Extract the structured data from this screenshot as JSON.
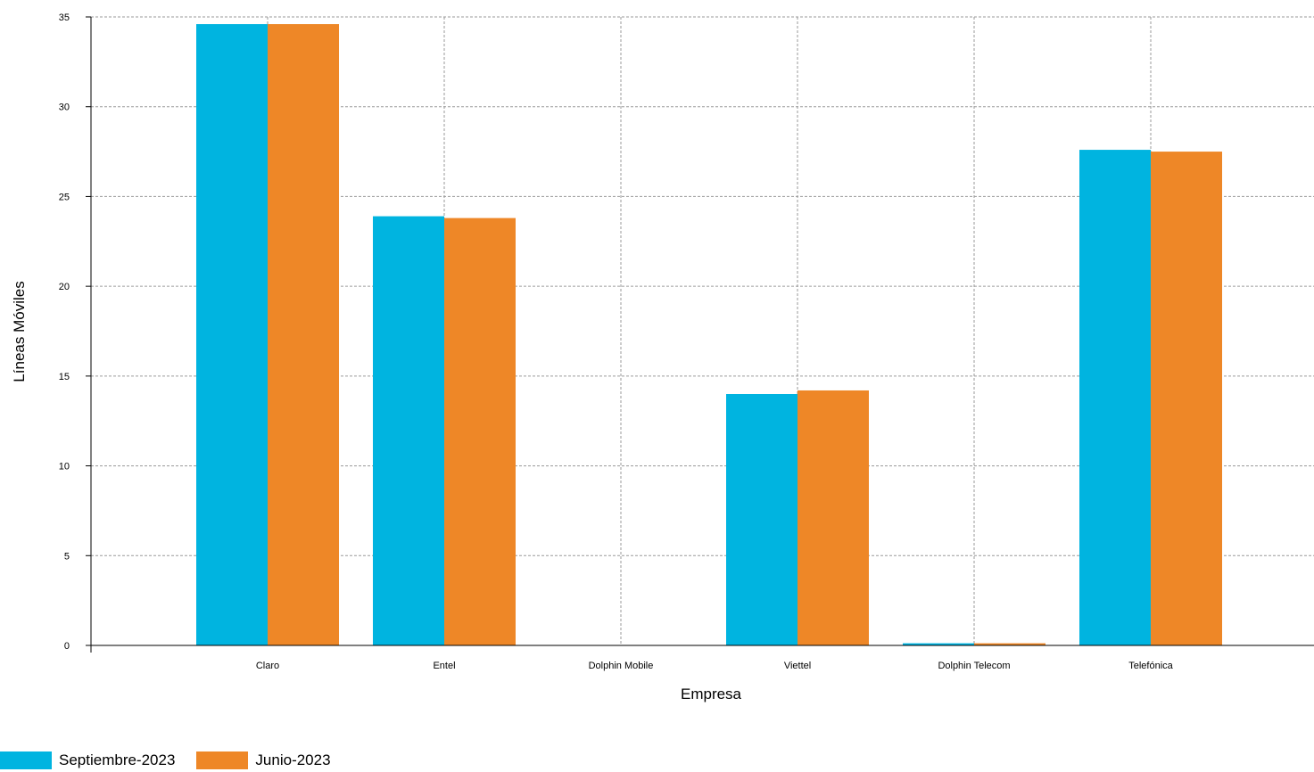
{
  "chart_data": {
    "type": "bar",
    "xlabel": "Empresa",
    "ylabel": "Líneas Móviles",
    "ylim": [
      0,
      35
    ],
    "yticks": [
      0,
      5,
      10,
      15,
      20,
      25,
      30,
      35
    ],
    "grid": true,
    "legend_position": "bottom-left",
    "categories": [
      "Claro",
      "Entel",
      "Dolphin Mobile",
      "Viettel",
      "Dolphin Telecom",
      "Telefónica"
    ],
    "series": [
      {
        "name": "Septiembre-2023",
        "color": "#00b4e0",
        "values": [
          34.6,
          23.9,
          0.0,
          14.0,
          0.12,
          27.6
        ]
      },
      {
        "name": "Junio-2023",
        "color": "#ee8727",
        "values": [
          34.6,
          23.8,
          0.0,
          14.2,
          0.12,
          27.5
        ]
      }
    ]
  }
}
